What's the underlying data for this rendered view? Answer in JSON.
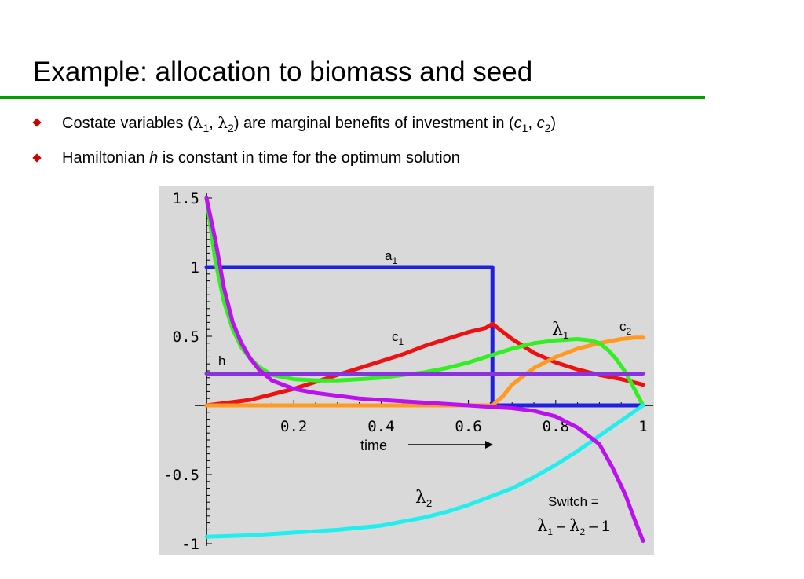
{
  "slide": {
    "title": "Example: allocation to biomass and seed",
    "bullet1": {
      "prefix": "Costate variables (",
      "l": "λ",
      "s1": "1",
      "sep": ", ",
      "l2": "λ",
      "s2": "2",
      "mid": ") are marginal benefits of investment in (",
      "c": "c",
      "cs1": "1",
      "sep2": ", ",
      "c2": "c",
      "cs2": "2",
      "suffix": ")"
    },
    "bullet2": {
      "prefix": "Hamiltonian ",
      "h": "h",
      "suffix": " is constant in time for the optimum solution"
    }
  },
  "chart_data": {
    "type": "line",
    "xlim": [
      0,
      1
    ],
    "ylim": [
      -1,
      1.5
    ],
    "x_ticks": [
      "0.2",
      "0.4",
      "0.6",
      "0.8",
      "1"
    ],
    "y_ticks": [
      "1.5",
      "1",
      "0.5",
      "-0.5",
      "-1"
    ],
    "xlabel": "time",
    "colors": {
      "a1": "#2020e0",
      "c1": "#ee1111",
      "c2": "#ff9922",
      "lambda1": "#33ee22",
      "lambda2": "#22eeee",
      "h": "#8833dd",
      "switch": "#bb11ee"
    },
    "labels": {
      "a1": {
        "b": "a",
        "s": "1"
      },
      "c1": {
        "b": "c",
        "s": "1"
      },
      "c2": {
        "b": "c",
        "s": "2"
      },
      "l1": {
        "b": "λ",
        "s": "1"
      },
      "l2": {
        "b": "λ",
        "s": "2"
      },
      "h": "h",
      "switch_line1": "Switch =",
      "switch_l1": "λ",
      "switch_s1": "1",
      "switch_op1": " – ",
      "switch_l2": "λ",
      "switch_s2": "2",
      "switch_op2": " – 1"
    },
    "series": [
      {
        "key": "a1",
        "x": [
          0,
          0.655,
          0.655,
          1
        ],
        "y": [
          1,
          1,
          0,
          0
        ]
      },
      {
        "key": "c1",
        "x": [
          0,
          0.05,
          0.1,
          0.15,
          0.2,
          0.3,
          0.4,
          0.45,
          0.5,
          0.55,
          0.6,
          0.64,
          0.655,
          0.7,
          0.75,
          0.8,
          0.85,
          0.9,
          0.95,
          1
        ],
        "y": [
          0,
          0.02,
          0.04,
          0.08,
          0.12,
          0.22,
          0.32,
          0.37,
          0.43,
          0.48,
          0.53,
          0.56,
          0.59,
          0.48,
          0.38,
          0.31,
          0.26,
          0.22,
          0.19,
          0.15
        ]
      },
      {
        "key": "c2",
        "x": [
          0,
          0.2,
          0.4,
          0.6,
          0.655,
          0.68,
          0.7,
          0.75,
          0.8,
          0.85,
          0.9,
          0.95,
          0.98,
          1
        ],
        "y": [
          0,
          0,
          0,
          0,
          0,
          0.07,
          0.15,
          0.27,
          0.35,
          0.41,
          0.45,
          0.48,
          0.49,
          0.49
        ]
      },
      {
        "key": "lambda1",
        "x": [
          0,
          0.02,
          0.04,
          0.06,
          0.08,
          0.1,
          0.12,
          0.15,
          0.2,
          0.25,
          0.3,
          0.35,
          0.4,
          0.45,
          0.5,
          0.55,
          0.6,
          0.65,
          0.7,
          0.75,
          0.8,
          0.85,
          0.88,
          0.9,
          0.92,
          0.94,
          0.96,
          0.98,
          1
        ],
        "y": [
          1.5,
          1.05,
          0.75,
          0.55,
          0.42,
          0.34,
          0.28,
          0.22,
          0.19,
          0.18,
          0.18,
          0.19,
          0.2,
          0.22,
          0.24,
          0.27,
          0.31,
          0.36,
          0.41,
          0.45,
          0.47,
          0.48,
          0.47,
          0.45,
          0.4,
          0.33,
          0.24,
          0.12,
          0
        ]
      },
      {
        "key": "lambda2",
        "x": [
          0,
          0.1,
          0.2,
          0.3,
          0.4,
          0.45,
          0.5,
          0.55,
          0.6,
          0.65,
          0.7,
          0.75,
          0.8,
          0.85,
          0.9,
          0.95,
          1
        ],
        "y": [
          -0.95,
          -0.94,
          -0.92,
          -0.9,
          -0.87,
          -0.84,
          -0.81,
          -0.77,
          -0.72,
          -0.66,
          -0.6,
          -0.52,
          -0.43,
          -0.33,
          -0.22,
          -0.11,
          0
        ]
      },
      {
        "key": "h",
        "x": [
          0,
          1
        ],
        "y": [
          0.23,
          0.23
        ]
      },
      {
        "key": "switch",
        "x": [
          0,
          0.02,
          0.04,
          0.06,
          0.08,
          0.1,
          0.12,
          0.15,
          0.2,
          0.25,
          0.3,
          0.35,
          0.4,
          0.45,
          0.5,
          0.55,
          0.6,
          0.65,
          0.7,
          0.75,
          0.8,
          0.85,
          0.9,
          0.93,
          0.96,
          0.98,
          1
        ],
        "y": [
          1.5,
          1.2,
          0.85,
          0.6,
          0.45,
          0.34,
          0.26,
          0.18,
          0.12,
          0.09,
          0.07,
          0.05,
          0.04,
          0.03,
          0.02,
          0.01,
          0,
          -0.01,
          -0.02,
          -0.04,
          -0.08,
          -0.16,
          -0.28,
          -0.45,
          -0.65,
          -0.82,
          -0.98
        ]
      }
    ]
  }
}
